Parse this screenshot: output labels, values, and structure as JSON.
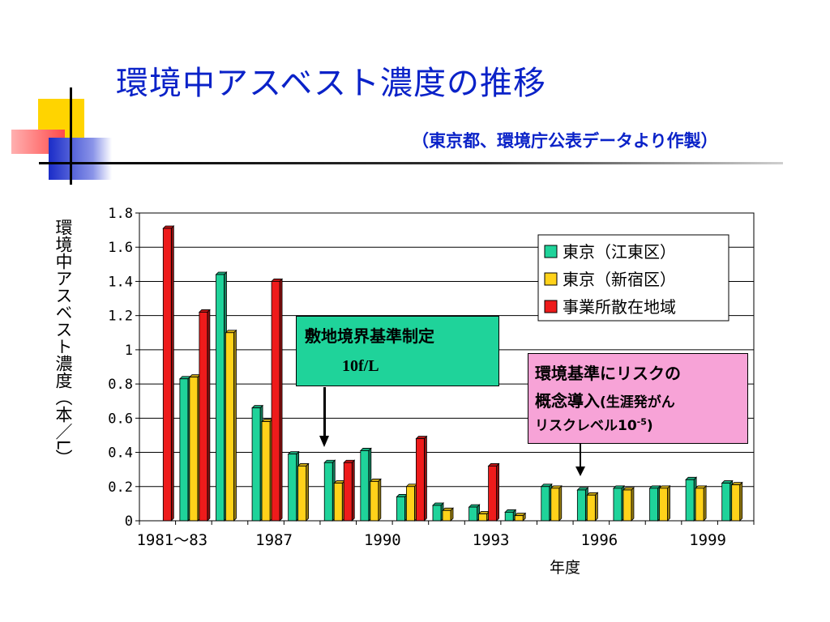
{
  "title": "環境中アスベスト濃度の推移",
  "subtitle": "（東京都、環境庁公表データより作製）",
  "annotations": {
    "standard_title": "敷地境界基準制定",
    "standard_value": "10f/L",
    "risk_line1": "環境基準にリスクの",
    "risk_line2_main": "概念導入",
    "risk_line2_paren": "(生涯発がん",
    "risk_line3_main": "リスクレベル10",
    "risk_line3_exp": "-5",
    "risk_line3_close": ")"
  },
  "colors": {
    "title": "#0a22c8",
    "teal": "#1fd39a",
    "yellow": "#ffd21a",
    "red": "#ee1b1b",
    "standard_box": "#1fd39a",
    "risk_box": "#f7a3d7"
  },
  "chart_data": {
    "type": "bar",
    "xlabel": "年度",
    "ylabel": "環境中アスベスト濃度（本／L）",
    "ylim": [
      0,
      1.8
    ],
    "yticks": [
      "0",
      "0.2",
      "0.4",
      "0.6",
      "0.8",
      "1",
      "1.2",
      "1.4",
      "1.6",
      "1.8"
    ],
    "xtick_labels": [
      "1981～83",
      "1987",
      "1990",
      "1993",
      "1996",
      "1999"
    ],
    "xtick_group_index": [
      0,
      3,
      6,
      9,
      12,
      15
    ],
    "legend_position": "top-right",
    "grid": "horizontal",
    "groups": [
      "1981～83",
      "",
      "",
      "1987",
      "",
      "",
      "1990",
      "",
      "",
      "1993",
      "",
      "",
      "1996",
      "",
      "",
      "1999",
      ""
    ],
    "series": [
      {
        "name": "東京（江東区）",
        "color": "#1fd39a",
        "values": [
          null,
          0.83,
          1.44,
          0.66,
          0.39,
          0.34,
          0.41,
          0.14,
          0.09,
          0.08,
          0.05,
          0.2,
          0.18,
          0.19,
          0.19,
          0.24,
          0.22
        ]
      },
      {
        "name": "東京（新宿区）",
        "color": "#ffd21a",
        "values": [
          null,
          0.84,
          1.1,
          0.58,
          0.32,
          0.22,
          0.23,
          0.2,
          0.06,
          0.04,
          0.03,
          0.19,
          0.15,
          0.18,
          0.19,
          0.19,
          0.21
        ]
      },
      {
        "name": "事業所散在地域",
        "color": "#ee1b1b",
        "values": [
          1.71,
          1.22,
          null,
          1.4,
          null,
          0.34,
          null,
          0.48,
          null,
          0.32,
          null,
          null,
          null,
          null,
          null,
          null,
          null
        ]
      }
    ]
  }
}
